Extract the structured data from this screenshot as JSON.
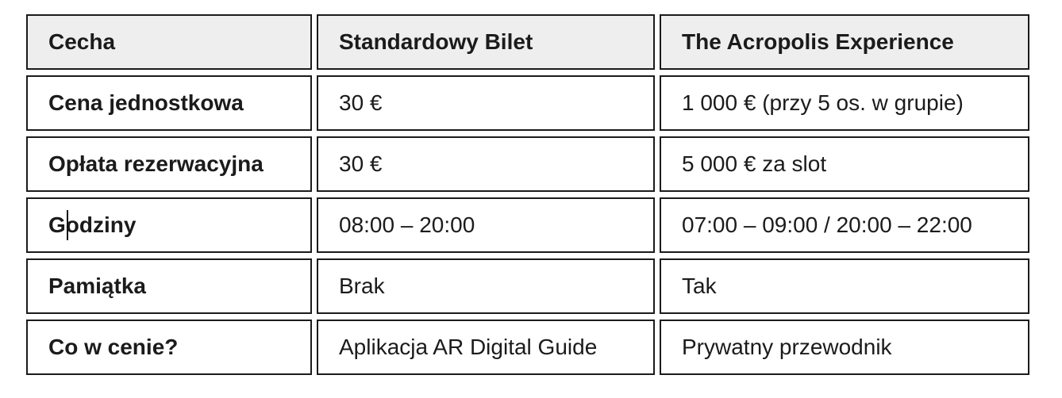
{
  "table": {
    "columns": [
      "Cecha",
      "Standardowy Bilet",
      "The Acropolis Experience"
    ],
    "rows": [
      {
        "feature": "Cena jednostkowa",
        "standard": "30 €",
        "acropolis": "1 000 € (przy 5 os. w grupie)"
      },
      {
        "feature": "Opłata rezerwacyjna",
        "standard": "30 €",
        "acropolis": "5 000 € za slot"
      },
      {
        "feature": "Godziny",
        "standard": "08:00 – 20:00",
        "acropolis": "07:00 – 09:00 / 20:00 – 22:00"
      },
      {
        "feature": "Pamiątka",
        "standard": "Brak",
        "acropolis": "Tak"
      },
      {
        "feature": "Co w cenie?",
        "standard": "Aplikacja AR Digital Guide",
        "acropolis": "Prywatny przewodnik"
      }
    ]
  },
  "colors": {
    "header_bg": "#eeeeee",
    "cell_bg": "#ffffff",
    "border": "#1b1b1b",
    "text": "#1b1b1b"
  }
}
